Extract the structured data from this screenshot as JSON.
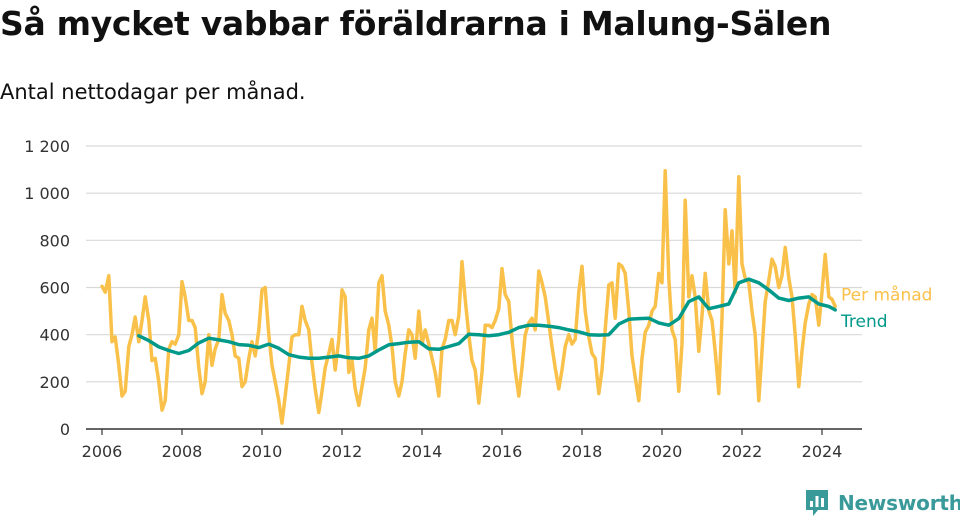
{
  "header": {
    "title": "Så mycket vabbar föräldrarna i Malung-Sälen",
    "subtitle": "Antal nettodagar per månad."
  },
  "brand": {
    "name": "Newsworthy",
    "color": "#3a9a9a",
    "icon": "bar-chart-logo-icon"
  },
  "colors": {
    "monthly": "#f9c14a",
    "trend": "#00998a",
    "grid": "#d9d9d9",
    "axis": "#333333"
  },
  "chart_data": {
    "type": "line",
    "title": "Så mycket vabbar föräldrarna i Malung-Sälen",
    "subtitle": "Antal nettodagar per månad.",
    "xlabel": "",
    "ylabel": "",
    "xlim": [
      2005.6,
      2025.0
    ],
    "ylim": [
      0,
      1200
    ],
    "x_ticks": [
      2006,
      2008,
      2010,
      2012,
      2014,
      2016,
      2018,
      2020,
      2022,
      2024
    ],
    "y_ticks": [
      0,
      200,
      400,
      600,
      800,
      1000,
      1200
    ],
    "y_tick_labels": [
      "0",
      "200",
      "400",
      "600",
      "800",
      "1 000",
      "1 200"
    ],
    "grid": "horizontal",
    "legend": "right, at line ends",
    "series": [
      {
        "name": "Per månad",
        "color": "#f9c14a",
        "points": [
          [
            2006.0,
            605
          ],
          [
            2006.08,
            580
          ],
          [
            2006.17,
            650
          ],
          [
            2006.25,
            370
          ],
          [
            2006.33,
            390
          ],
          [
            2006.42,
            270
          ],
          [
            2006.5,
            140
          ],
          [
            2006.58,
            160
          ],
          [
            2006.67,
            350
          ],
          [
            2006.75,
            400
          ],
          [
            2006.83,
            475
          ],
          [
            2006.92,
            370
          ],
          [
            2007.0,
            460
          ],
          [
            2007.08,
            560
          ],
          [
            2007.17,
            460
          ],
          [
            2007.25,
            290
          ],
          [
            2007.33,
            300
          ],
          [
            2007.42,
            200
          ],
          [
            2007.5,
            80
          ],
          [
            2007.58,
            120
          ],
          [
            2007.67,
            340
          ],
          [
            2007.75,
            370
          ],
          [
            2007.83,
            360
          ],
          [
            2007.92,
            400
          ],
          [
            2008.0,
            625
          ],
          [
            2008.08,
            560
          ],
          [
            2008.17,
            460
          ],
          [
            2008.25,
            460
          ],
          [
            2008.33,
            430
          ],
          [
            2008.42,
            260
          ],
          [
            2008.5,
            150
          ],
          [
            2008.58,
            200
          ],
          [
            2008.67,
            400
          ],
          [
            2008.75,
            270
          ],
          [
            2008.83,
            340
          ],
          [
            2008.92,
            380
          ],
          [
            2009.0,
            570
          ],
          [
            2009.08,
            490
          ],
          [
            2009.17,
            460
          ],
          [
            2009.25,
            400
          ],
          [
            2009.33,
            310
          ],
          [
            2009.42,
            300
          ],
          [
            2009.5,
            180
          ],
          [
            2009.58,
            200
          ],
          [
            2009.67,
            300
          ],
          [
            2009.75,
            370
          ],
          [
            2009.83,
            310
          ],
          [
            2009.92,
            420
          ],
          [
            2010.0,
            590
          ],
          [
            2010.08,
            600
          ],
          [
            2010.17,
            400
          ],
          [
            2010.25,
            270
          ],
          [
            2010.33,
            200
          ],
          [
            2010.42,
            120
          ],
          [
            2010.5,
            25
          ],
          [
            2010.58,
            140
          ],
          [
            2010.67,
            270
          ],
          [
            2010.75,
            390
          ],
          [
            2010.83,
            400
          ],
          [
            2010.92,
            400
          ],
          [
            2011.0,
            520
          ],
          [
            2011.08,
            460
          ],
          [
            2011.17,
            420
          ],
          [
            2011.25,
            280
          ],
          [
            2011.33,
            170
          ],
          [
            2011.42,
            70
          ],
          [
            2011.5,
            160
          ],
          [
            2011.58,
            260
          ],
          [
            2011.67,
            320
          ],
          [
            2011.75,
            380
          ],
          [
            2011.83,
            250
          ],
          [
            2011.92,
            380
          ],
          [
            2012.0,
            590
          ],
          [
            2012.08,
            560
          ],
          [
            2012.17,
            240
          ],
          [
            2012.25,
            290
          ],
          [
            2012.33,
            170
          ],
          [
            2012.42,
            100
          ],
          [
            2012.5,
            180
          ],
          [
            2012.58,
            260
          ],
          [
            2012.67,
            420
          ],
          [
            2012.75,
            470
          ],
          [
            2012.83,
            330
          ],
          [
            2012.92,
            620
          ],
          [
            2013.0,
            650
          ],
          [
            2013.08,
            500
          ],
          [
            2013.17,
            440
          ],
          [
            2013.25,
            350
          ],
          [
            2013.33,
            200
          ],
          [
            2013.42,
            140
          ],
          [
            2013.5,
            200
          ],
          [
            2013.58,
            320
          ],
          [
            2013.67,
            420
          ],
          [
            2013.75,
            400
          ],
          [
            2013.83,
            300
          ],
          [
            2013.92,
            500
          ],
          [
            2014.0,
            360
          ],
          [
            2014.08,
            420
          ],
          [
            2014.17,
            360
          ],
          [
            2014.25,
            300
          ],
          [
            2014.33,
            240
          ],
          [
            2014.42,
            140
          ],
          [
            2014.5,
            340
          ],
          [
            2014.58,
            380
          ],
          [
            2014.67,
            460
          ],
          [
            2014.75,
            460
          ],
          [
            2014.83,
            400
          ],
          [
            2014.92,
            480
          ],
          [
            2015.0,
            710
          ],
          [
            2015.08,
            550
          ],
          [
            2015.17,
            400
          ],
          [
            2015.25,
            290
          ],
          [
            2015.33,
            250
          ],
          [
            2015.42,
            110
          ],
          [
            2015.5,
            240
          ],
          [
            2015.58,
            440
          ],
          [
            2015.67,
            440
          ],
          [
            2015.75,
            430
          ],
          [
            2015.83,
            460
          ],
          [
            2015.92,
            510
          ],
          [
            2016.0,
            680
          ],
          [
            2016.08,
            570
          ],
          [
            2016.17,
            540
          ],
          [
            2016.25,
            380
          ],
          [
            2016.33,
            250
          ],
          [
            2016.42,
            140
          ],
          [
            2016.5,
            260
          ],
          [
            2016.58,
            400
          ],
          [
            2016.67,
            450
          ],
          [
            2016.75,
            470
          ],
          [
            2016.83,
            420
          ],
          [
            2016.92,
            670
          ],
          [
            2017.0,
            620
          ],
          [
            2017.08,
            560
          ],
          [
            2017.17,
            450
          ],
          [
            2017.25,
            350
          ],
          [
            2017.33,
            260
          ],
          [
            2017.42,
            170
          ],
          [
            2017.5,
            250
          ],
          [
            2017.58,
            350
          ],
          [
            2017.67,
            400
          ],
          [
            2017.75,
            360
          ],
          [
            2017.83,
            380
          ],
          [
            2017.92,
            580
          ],
          [
            2018.0,
            690
          ],
          [
            2018.08,
            500
          ],
          [
            2018.17,
            390
          ],
          [
            2018.25,
            320
          ],
          [
            2018.33,
            300
          ],
          [
            2018.42,
            150
          ],
          [
            2018.5,
            250
          ],
          [
            2018.58,
            420
          ],
          [
            2018.67,
            610
          ],
          [
            2018.75,
            620
          ],
          [
            2018.83,
            470
          ],
          [
            2018.92,
            700
          ],
          [
            2019.0,
            690
          ],
          [
            2019.08,
            660
          ],
          [
            2019.17,
            500
          ],
          [
            2019.25,
            310
          ],
          [
            2019.33,
            220
          ],
          [
            2019.42,
            120
          ],
          [
            2019.5,
            300
          ],
          [
            2019.58,
            410
          ],
          [
            2019.67,
            440
          ],
          [
            2019.75,
            500
          ],
          [
            2019.83,
            520
          ],
          [
            2019.92,
            660
          ],
          [
            2020.0,
            620
          ],
          [
            2020.08,
            1095
          ],
          [
            2020.17,
            640
          ],
          [
            2020.25,
            420
          ],
          [
            2020.33,
            380
          ],
          [
            2020.42,
            160
          ],
          [
            2020.5,
            360
          ],
          [
            2020.58,
            970
          ],
          [
            2020.67,
            560
          ],
          [
            2020.75,
            650
          ],
          [
            2020.83,
            560
          ],
          [
            2020.92,
            330
          ],
          [
            2021.0,
            480
          ],
          [
            2021.08,
            660
          ],
          [
            2021.17,
            500
          ],
          [
            2021.25,
            460
          ],
          [
            2021.33,
            330
          ],
          [
            2021.42,
            150
          ],
          [
            2021.5,
            470
          ],
          [
            2021.58,
            930
          ],
          [
            2021.67,
            700
          ],
          [
            2021.75,
            840
          ],
          [
            2021.83,
            580
          ],
          [
            2021.92,
            1070
          ],
          [
            2022.0,
            700
          ],
          [
            2022.08,
            640
          ],
          [
            2022.17,
            620
          ],
          [
            2022.25,
            500
          ],
          [
            2022.33,
            400
          ],
          [
            2022.42,
            120
          ],
          [
            2022.5,
            330
          ],
          [
            2022.58,
            540
          ],
          [
            2022.67,
            630
          ],
          [
            2022.75,
            720
          ],
          [
            2022.83,
            690
          ],
          [
            2022.92,
            600
          ],
          [
            2023.0,
            650
          ],
          [
            2023.08,
            770
          ],
          [
            2023.17,
            640
          ],
          [
            2023.25,
            560
          ],
          [
            2023.33,
            400
          ],
          [
            2023.42,
            180
          ],
          [
            2023.5,
            330
          ],
          [
            2023.58,
            450
          ],
          [
            2023.67,
            530
          ],
          [
            2023.75,
            570
          ],
          [
            2023.83,
            560
          ],
          [
            2023.92,
            440
          ],
          [
            2024.0,
            580
          ],
          [
            2024.08,
            740
          ],
          [
            2024.17,
            560
          ],
          [
            2024.25,
            550
          ],
          [
            2024.33,
            520
          ]
        ]
      },
      {
        "name": "Trend",
        "color": "#00998a",
        "points": [
          [
            2006.92,
            395
          ],
          [
            2007.17,
            375
          ],
          [
            2007.42,
            348
          ],
          [
            2007.67,
            333
          ],
          [
            2007.92,
            320
          ],
          [
            2008.17,
            333
          ],
          [
            2008.42,
            365
          ],
          [
            2008.67,
            385
          ],
          [
            2008.92,
            378
          ],
          [
            2009.17,
            370
          ],
          [
            2009.42,
            358
          ],
          [
            2009.67,
            355
          ],
          [
            2009.92,
            345
          ],
          [
            2010.17,
            360
          ],
          [
            2010.42,
            342
          ],
          [
            2010.67,
            315
          ],
          [
            2010.92,
            305
          ],
          [
            2011.17,
            300
          ],
          [
            2011.42,
            300
          ],
          [
            2011.67,
            305
          ],
          [
            2011.92,
            310
          ],
          [
            2012.17,
            302
          ],
          [
            2012.42,
            300
          ],
          [
            2012.67,
            310
          ],
          [
            2012.92,
            335
          ],
          [
            2013.17,
            357
          ],
          [
            2013.42,
            362
          ],
          [
            2013.67,
            368
          ],
          [
            2013.92,
            370
          ],
          [
            2014.17,
            340
          ],
          [
            2014.42,
            338
          ],
          [
            2014.67,
            350
          ],
          [
            2014.92,
            362
          ],
          [
            2015.17,
            402
          ],
          [
            2015.42,
            400
          ],
          [
            2015.67,
            395
          ],
          [
            2015.92,
            400
          ],
          [
            2016.17,
            410
          ],
          [
            2016.42,
            430
          ],
          [
            2016.67,
            440
          ],
          [
            2016.92,
            440
          ],
          [
            2017.17,
            436
          ],
          [
            2017.42,
            430
          ],
          [
            2017.67,
            420
          ],
          [
            2017.92,
            412
          ],
          [
            2018.17,
            400
          ],
          [
            2018.42,
            398
          ],
          [
            2018.67,
            400
          ],
          [
            2018.92,
            445
          ],
          [
            2019.17,
            465
          ],
          [
            2019.42,
            468
          ],
          [
            2019.67,
            470
          ],
          [
            2019.92,
            450
          ],
          [
            2020.17,
            440
          ],
          [
            2020.42,
            468
          ],
          [
            2020.67,
            540
          ],
          [
            2020.92,
            560
          ],
          [
            2021.17,
            510
          ],
          [
            2021.42,
            520
          ],
          [
            2021.67,
            530
          ],
          [
            2021.92,
            620
          ],
          [
            2022.17,
            635
          ],
          [
            2022.42,
            620
          ],
          [
            2022.67,
            590
          ],
          [
            2022.92,
            555
          ],
          [
            2023.17,
            545
          ],
          [
            2023.42,
            555
          ],
          [
            2023.67,
            560
          ],
          [
            2023.92,
            530
          ],
          [
            2024.17,
            520
          ],
          [
            2024.33,
            505
          ]
        ]
      }
    ]
  }
}
